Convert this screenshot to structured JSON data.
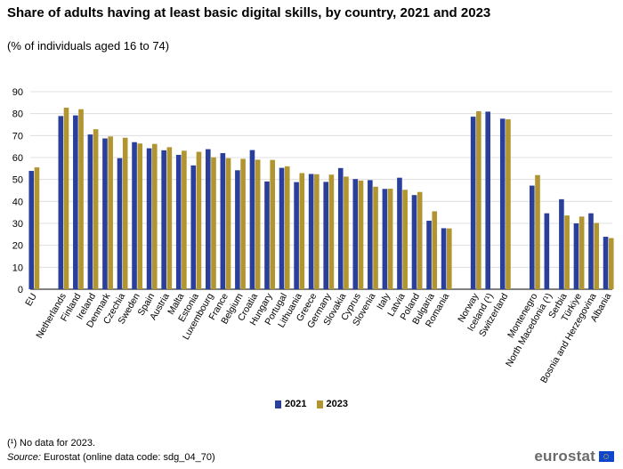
{
  "title": "Share of adults having at least basic digital skills, by country, 2021 and 2023",
  "subtitle": "(% of individuals aged 16 to 74)",
  "footnote": "(¹) No data for 2023.",
  "source_label": "Source:",
  "source_text": "Eurostat (online data code: sdg_04_70)",
  "logo_text": "eurostat",
  "colors": {
    "s2021": "#2a3f9b",
    "s2023": "#b09530",
    "grid": "#d9d9d9"
  },
  "chart_data": {
    "type": "bar",
    "title": "Share of adults having at least basic digital skills, by country, 2021 and 2023",
    "ylim": [
      0,
      90
    ],
    "yticks": [
      0,
      10,
      20,
      30,
      40,
      50,
      60,
      70,
      80,
      90
    ],
    "grid": true,
    "legend": "bottom-center",
    "series": [
      {
        "name": "2021"
      },
      {
        "name": "2023"
      }
    ],
    "groups": [
      {
        "categories": [
          "EU"
        ],
        "v2021": [
          53.9
        ],
        "v2023": [
          55.5
        ]
      },
      {
        "categories": [
          "Netherlands",
          "Finland",
          "Ireland",
          "Denmark",
          "Czechia",
          "Sweden",
          "Spain",
          "Austria",
          "Malta",
          "Estonia",
          "Luxembourg",
          "France",
          "Belgium",
          "Croatia",
          "Hungary",
          "Portugal",
          "Lithuania",
          "Greece",
          "Germany",
          "Slovakia",
          "Cyprus",
          "Slovenia",
          "Italy",
          "Latvia",
          "Poland",
          "Bulgaria",
          "Romania"
        ],
        "v2021": [
          78.9,
          79.2,
          70.5,
          68.7,
          59.7,
          67.0,
          64.2,
          63.3,
          61.2,
          56.4,
          63.8,
          62.0,
          54.2,
          63.4,
          49.1,
          55.3,
          48.8,
          52.5,
          48.9,
          55.2,
          50.2,
          49.7,
          45.7,
          50.8,
          42.9,
          31.2,
          27.8
        ],
        "v2023": [
          82.7,
          82.0,
          72.9,
          69.6,
          69.0,
          66.4,
          66.2,
          64.7,
          63.1,
          62.6,
          60.1,
          59.7,
          59.4,
          59.0,
          58.9,
          56.0,
          52.9,
          52.4,
          52.2,
          51.3,
          49.5,
          46.7,
          45.8,
          45.3,
          44.3,
          35.5,
          27.7
        ]
      },
      {
        "categories": [
          "Norway",
          "Iceland (¹)",
          "Switzerland"
        ],
        "v2021": [
          78.6,
          80.9,
          77.7
        ],
        "v2023": [
          81.1,
          null,
          77.4
        ]
      },
      {
        "categories": [
          "Montenegro",
          "North Macedonia (¹)",
          "Serbia",
          "Türkiye",
          "Bosnia and Herzegovina",
          "Albania"
        ],
        "v2021": [
          47.2,
          34.6,
          41.0,
          30.0,
          34.6,
          23.9
        ],
        "v2023": [
          52.0,
          null,
          33.6,
          33.1,
          30.2,
          23.3
        ]
      }
    ]
  }
}
